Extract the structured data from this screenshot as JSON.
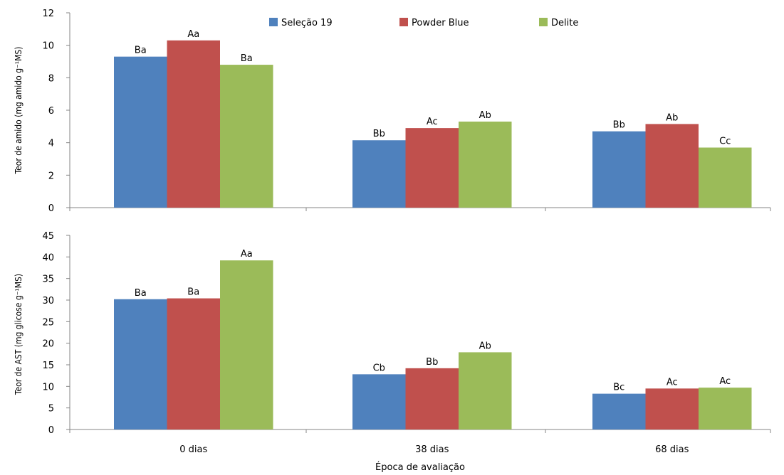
{
  "chart_data": [
    {
      "type": "bar",
      "ylabel": "Teor de amido (mg amido g⁻¹MS)",
      "ylim": [
        0,
        12
      ],
      "yticks": [
        "0",
        "2",
        "4",
        "6",
        "8",
        "10",
        "12"
      ],
      "categories": [
        "0 dias",
        "38 dias",
        "68 dias"
      ],
      "legend": "top-center",
      "series": [
        {
          "name": "Seleção 19",
          "color": "#4F81BD",
          "values": [
            9.3,
            4.15,
            4.7
          ],
          "labels": [
            "Ba",
            "Bb",
            "Bb"
          ]
        },
        {
          "name": "Powder Blue",
          "color": "#C0504D",
          "values": [
            10.3,
            4.9,
            5.15
          ],
          "labels": [
            "Aa",
            "Ac",
            "Ab"
          ]
        },
        {
          "name": "Delite",
          "color": "#9BBB59",
          "values": [
            8.8,
            5.3,
            3.7
          ],
          "labels": [
            "Ba",
            "Ab",
            "Cc"
          ]
        }
      ]
    },
    {
      "type": "bar",
      "ylabel": "Teor de AST (mg glicose g⁻¹MS)",
      "xlabel": "Época de avaliação",
      "ylim": [
        0,
        45
      ],
      "yticks": [
        "0",
        "5",
        "10",
        "15",
        "20",
        "25",
        "30",
        "35",
        "40",
        "45"
      ],
      "categories": [
        "0 dias",
        "38 dias",
        "68 dias"
      ],
      "series": [
        {
          "name": "Seleção 19",
          "color": "#4F81BD",
          "values": [
            30.2,
            12.8,
            8.3
          ],
          "labels": [
            "Ba",
            "Cb",
            "Bc"
          ]
        },
        {
          "name": "Powder Blue",
          "color": "#C0504D",
          "values": [
            30.4,
            14.2,
            9.5
          ],
          "labels": [
            "Ba",
            "Bb",
            "Ac"
          ]
        },
        {
          "name": "Delite",
          "color": "#9BBB59",
          "values": [
            39.2,
            17.9,
            9.7
          ],
          "labels": [
            "Aa",
            "Ab",
            "Ac"
          ]
        }
      ]
    }
  ]
}
